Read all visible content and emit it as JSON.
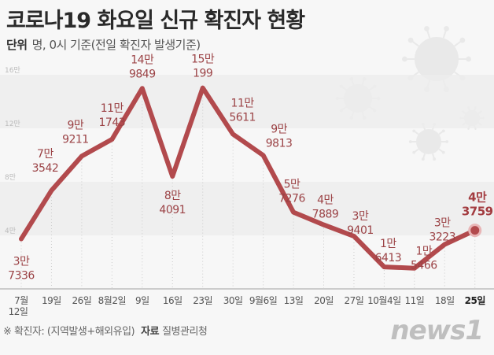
{
  "header": {
    "title": "코로나19 화요일 신규 확진자 현황",
    "unit_label": "단위",
    "unit_text": "명, 0시 기준(전일 확진자 발생기준)"
  },
  "footer": {
    "note": "※ 확진자: (지역발생+해외유입)",
    "source_label": "자료",
    "source": "질병관리청",
    "logo": "news1"
  },
  "chart_data": {
    "type": "line",
    "title": "코로나19 화요일 신규 확진자 현황",
    "categories": [
      "7월 12일",
      "19일",
      "26일",
      "8월2일",
      "9일",
      "16일",
      "23일",
      "30일",
      "9월6일",
      "13일",
      "20일",
      "27일",
      "10월4일",
      "11일",
      "18일",
      "25일"
    ],
    "values": [
      37336,
      73542,
      99211,
      111743,
      149849,
      84091,
      150199,
      115611,
      99813,
      57276,
      47889,
      39401,
      16413,
      15466,
      33223,
      43759
    ],
    "data_labels": [
      [
        "3만",
        "7336"
      ],
      [
        "7만",
        "3542"
      ],
      [
        "9만",
        "9211"
      ],
      [
        "11만",
        "1743"
      ],
      [
        "14만",
        "9849"
      ],
      [
        "8만",
        "4091"
      ],
      [
        "15만",
        "199"
      ],
      [
        "11만",
        "5611"
      ],
      [
        "9만",
        "9813"
      ],
      [
        "5만",
        "7276"
      ],
      [
        "4만",
        "7889"
      ],
      [
        "3만",
        "9401"
      ],
      [
        "1만",
        "6413"
      ],
      [
        "1만",
        "5466"
      ],
      [
        "3만",
        "3223"
      ],
      [
        "4만",
        "3759"
      ]
    ],
    "y_ticks": [
      "4만",
      "8만",
      "12만",
      "16만"
    ],
    "y_tick_values": [
      40000,
      80000,
      120000,
      160000
    ],
    "ylim": [
      0,
      160000
    ],
    "line_color": "#b24a4d",
    "grid": "horizontal bands",
    "legend": "none"
  }
}
